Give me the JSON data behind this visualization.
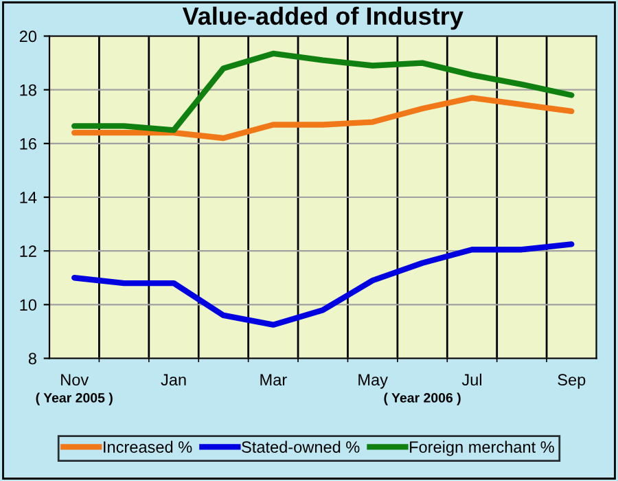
{
  "chart_data": {
    "type": "line",
    "title": "Value-added of Industry",
    "categories": [
      "Nov",
      null,
      "Jan",
      null,
      "Mar",
      null,
      "May",
      null,
      "Jul",
      null,
      "Sep"
    ],
    "series": [
      {
        "name": "Increased %",
        "color": "#f07818",
        "values": [
          16.4,
          16.4,
          16.4,
          16.2,
          16.7,
          16.7,
          16.8,
          17.3,
          17.7,
          17.45,
          17.2
        ]
      },
      {
        "name": "Stated-owned %",
        "color": "#0000e0",
        "values": [
          11.0,
          10.8,
          10.8,
          9.6,
          9.25,
          9.8,
          10.9,
          11.55,
          12.05,
          12.05,
          12.25
        ]
      },
      {
        "name": "Foreign merchant %",
        "color": "#108010",
        "values": [
          16.65,
          16.65,
          16.5,
          18.8,
          19.35,
          19.1,
          18.9,
          19.0,
          18.55,
          18.2,
          17.8
        ]
      }
    ],
    "ylim": [
      8,
      20
    ],
    "yticks": [
      8,
      10,
      12,
      14,
      16,
      18,
      20
    ],
    "grid": true,
    "legend": "bottom",
    "marker": "none",
    "line_style": "solid",
    "annotations": [
      "( Year 2005 )",
      "( Year 2006 )"
    ]
  }
}
